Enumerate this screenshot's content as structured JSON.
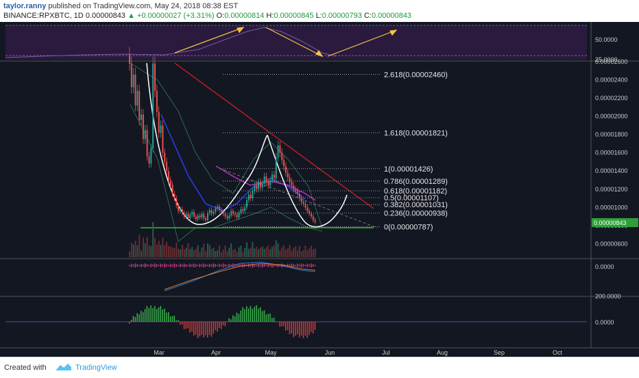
{
  "header": {
    "user": "taylor.ranny",
    "published_text": "published on TradingView.com, May 24, 2018 08:38 EST",
    "symbol": "BINANCE:RPXBTC, 1D",
    "last": "0.00000843",
    "change": "+0.00000027 (+3.31%)",
    "o_label": "O:",
    "o_value": "0.00000814",
    "h_label": "H:",
    "h_value": "0.00000845",
    "l_label": "L:",
    "l_value": "0.00000793",
    "c_label": "C:",
    "c_value": "0.00000843"
  },
  "footer": {
    "created_with": "Created with",
    "brand": "TradingView"
  },
  "colors": {
    "background": "#131722",
    "up": "#26a69a",
    "down": "#ef5350",
    "fib_text": "#e6e6e6",
    "trend": "#d11f1f",
    "support": "#3ddc3d",
    "pattern": "#ffffff",
    "rsi_arrow": "#f2c443",
    "price_tag": "#2e9e3a"
  },
  "chart_data": {
    "type": "candlestick",
    "symbol": "BINANCE:RPXBTC",
    "interval": "1D",
    "x_tick_labels": [
      "Mar",
      "Apr",
      "May",
      "Jun",
      "Jul",
      "Aug",
      "Sep",
      "Oct"
    ],
    "price_axis": {
      "ticks": [
        "0.00002600",
        "0.00002400",
        "0.00002200",
        "0.00002000",
        "0.00001800",
        "0.00001600",
        "0.00001400",
        "0.00001200",
        "0.00001000",
        "0.00000800",
        "0.00000600"
      ],
      "range": [
        5.5e-06,
        2.6e-05
      ],
      "current_price_label": "0.00000843",
      "current_price": 8.43e-06
    },
    "rsi_axis": {
      "ticks": [
        "50.0000",
        "25.0000"
      ],
      "range": [
        0,
        100
      ]
    },
    "macd_axis": {
      "ticks": [
        "0.0000"
      ]
    },
    "osc_axis": {
      "ticks": [
        "200.0000",
        "0.0000"
      ]
    },
    "fib_levels": [
      {
        "label": "2.618(0.00002460)",
        "value": 2.46e-05
      },
      {
        "label": "1.618(0.00001821)",
        "value": 1.821e-05
      },
      {
        "label": "1(0.00001426)",
        "value": 1.426e-05
      },
      {
        "label": "0.786(0.00001289)",
        "value": 1.289e-05
      },
      {
        "label": "0.618(0.00001182)",
        "value": 1.182e-05
      },
      {
        "label": "0.5(0.00001107)",
        "value": 1.107e-05
      },
      {
        "label": "0.382(0.00001031)",
        "value": 1.031e-05
      },
      {
        "label": "0.236(0.00000938)",
        "value": 9.38e-06
      },
      {
        "label": "0(0.00000787)",
        "value": 7.87e-06
      }
    ],
    "closes": [
      2.58e-05,
      2.32e-05,
      2.46e-05,
      2.12e-05,
      2.28e-05,
      1.96e-05,
      2.02e-05,
      1.75e-05,
      1.85e-05,
      1.56e-05,
      1.48e-05,
      1.65e-05,
      2.58e-05,
      2.28e-05,
      2.05e-05,
      1.82e-05,
      1.9e-05,
      1.6e-05,
      1.5e-05,
      1.4e-05,
      1.3e-05,
      1.25e-05,
      1.15e-05,
      1.1e-05,
      1.02e-05,
      9.6e-06,
      9.8e-06,
      9.4e-06,
      9e-06,
      9.3e-06,
      8.8e-06,
      9.2e-06,
      9.5e-06,
      9e-06,
      8.7e-06,
      9.1e-06,
      8.9e-06,
      9.3e-06,
      8.8e-06,
      8.6e-06,
      9.4e-06,
      9.7e-06,
      9.3e-06,
      9.5e-06,
      9.9e-06,
      1.01e-05,
      9.7e-06,
      9.5e-06,
      9.3e-06,
      9e-06,
      8.8e-06,
      9.1e-06,
      9.6e-06,
      9.3e-06,
      9.2e-06,
      8.9e-06,
      9.4e-06,
      9.8e-06,
      9.6e-06,
      1e-05,
      1.08e-05,
      1.14e-05,
      1.1e-05,
      1.18e-05,
      1.24e-05,
      1.2e-05,
      1.28e-05,
      1.22e-05,
      1.26e-05,
      1.34e-05,
      1.28e-05,
      1.24e-05,
      1.3e-05,
      1.36e-05,
      1.32e-05,
      1.55e-05,
      1.68e-05,
      1.6e-05,
      1.52e-05,
      1.45e-05,
      1.38e-05,
      1.33e-05,
      1.28e-05,
      1.24e-05,
      1.2e-05,
      1.18e-05,
      1.15e-05,
      1.1e-05,
      1.06e-05,
      1.04e-05,
      1e-05,
      9.6e-06,
      9.3e-06,
      9e-06,
      8.6e-06,
      8.4e-06
    ]
  }
}
